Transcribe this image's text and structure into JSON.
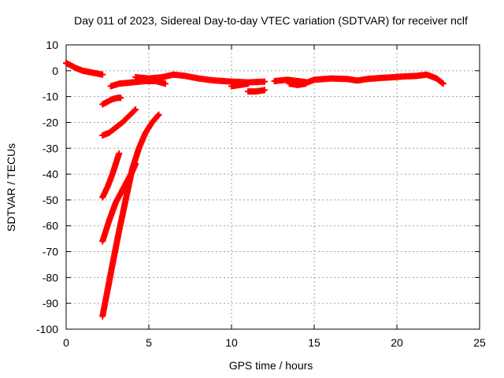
{
  "chart_data": {
    "type": "scatter",
    "title": "Day 011 of 2023, Sidereal Day-to-day VTEC variation (SDTVAR) for receiver nclf",
    "xlabel": "GPS time / hours",
    "ylabel": "SDTVAR / TECUs",
    "xlim": [
      0,
      25
    ],
    "ylim": [
      -100,
      10
    ],
    "x_ticks": [
      0,
      5,
      10,
      15,
      20,
      25
    ],
    "y_ticks": [
      10,
      0,
      -10,
      -20,
      -30,
      -40,
      -50,
      -60,
      -70,
      -80,
      -90,
      -100
    ],
    "grid": true,
    "series_color": "#ff0000",
    "marker": "plus",
    "series": [
      {
        "values": [
          [
            0,
            3
          ],
          [
            0.3,
            2
          ],
          [
            0.6,
            1
          ],
          [
            1.0,
            0
          ],
          [
            1.4,
            -0.5
          ],
          [
            1.8,
            -1
          ],
          [
            2.2,
            -1.5
          ]
        ]
      },
      {
        "values": [
          [
            2.2,
            -13
          ],
          [
            2.5,
            -12
          ],
          [
            2.8,
            -11
          ],
          [
            3.1,
            -10.5
          ],
          [
            3.3,
            -10.5
          ]
        ]
      },
      {
        "values": [
          [
            2.2,
            -25
          ],
          [
            2.6,
            -24
          ],
          [
            3.0,
            -22
          ],
          [
            3.4,
            -20
          ],
          [
            3.8,
            -17.5
          ],
          [
            4.2,
            -15
          ]
        ]
      },
      {
        "values": [
          [
            2.2,
            -49
          ],
          [
            2.5,
            -45
          ],
          [
            2.8,
            -40
          ],
          [
            3.0,
            -36
          ],
          [
            3.2,
            -32
          ]
        ]
      },
      {
        "values": [
          [
            2.2,
            -66
          ],
          [
            2.6,
            -58
          ],
          [
            3.0,
            -51
          ],
          [
            3.5,
            -45
          ],
          [
            4.0,
            -39
          ],
          [
            4.2,
            -36
          ]
        ]
      },
      {
        "values": [
          [
            2.2,
            -95
          ],
          [
            2.5,
            -85
          ],
          [
            2.8,
            -75
          ],
          [
            3.2,
            -62
          ],
          [
            3.6,
            -50
          ],
          [
            4.0,
            -38
          ],
          [
            4.4,
            -30
          ],
          [
            4.8,
            -24
          ],
          [
            5.2,
            -20
          ],
          [
            5.6,
            -17
          ]
        ]
      },
      {
        "values": [
          [
            2.7,
            -6
          ],
          [
            3.2,
            -5
          ],
          [
            4,
            -4.5
          ],
          [
            4.8,
            -4
          ],
          [
            5.4,
            -4
          ],
          [
            6,
            -5
          ]
        ]
      },
      {
        "values": [
          [
            4.2,
            -2.5
          ],
          [
            5,
            -3
          ],
          [
            5.8,
            -2.5
          ],
          [
            6.5,
            -1.5
          ],
          [
            7.2,
            -2
          ],
          [
            8,
            -3
          ],
          [
            9,
            -3.8
          ],
          [
            10,
            -4.2
          ],
          [
            11,
            -4.5
          ],
          [
            12,
            -4.2
          ]
        ]
      },
      {
        "values": [
          [
            10,
            -6
          ],
          [
            10.5,
            -5.5
          ],
          [
            11,
            -5
          ]
        ]
      },
      {
        "values": [
          [
            11,
            -8
          ],
          [
            11.5,
            -8
          ],
          [
            12,
            -7.5
          ]
        ]
      },
      {
        "values": [
          [
            12.6,
            -4
          ],
          [
            13.4,
            -3.5
          ],
          [
            14,
            -4
          ],
          [
            14.6,
            -4.5
          ],
          [
            15,
            -3.5
          ],
          [
            16,
            -3
          ],
          [
            17,
            -3.2
          ],
          [
            17.6,
            -3.8
          ],
          [
            18.2,
            -3.2
          ],
          [
            19,
            -2.8
          ],
          [
            19.8,
            -2.5
          ],
          [
            20.5,
            -2.2
          ],
          [
            21.2,
            -2
          ],
          [
            21.8,
            -1.5
          ],
          [
            22.4,
            -3
          ],
          [
            22.8,
            -5
          ]
        ]
      },
      {
        "values": [
          [
            13.5,
            -5
          ],
          [
            14,
            -5.5
          ],
          [
            14.5,
            -5
          ]
        ]
      }
    ]
  }
}
